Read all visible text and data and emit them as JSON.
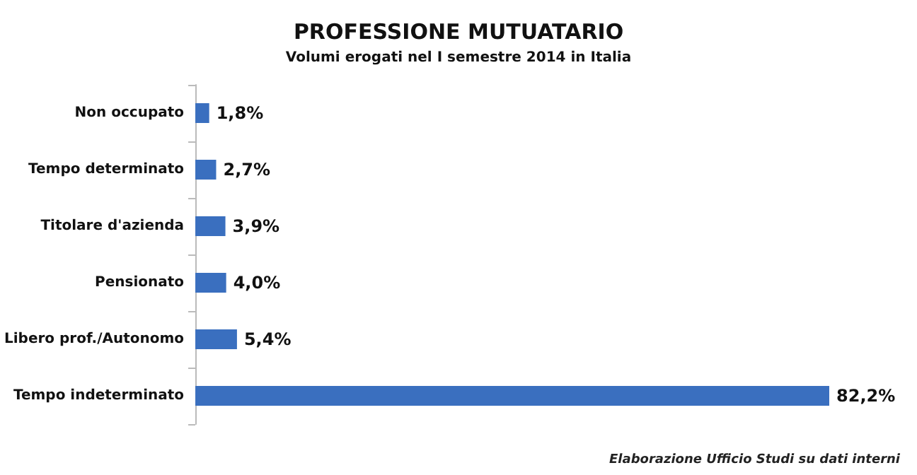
{
  "chart_data": {
    "type": "bar",
    "orientation": "horizontal",
    "title": "PROFESSIONE MUTUATARIO",
    "subtitle": "Volumi erogati nel I semestre 2014 in Italia",
    "categories": [
      "Non occupato",
      "Tempo determinato",
      "Titolare d'azienda",
      "Pensionato",
      "Libero prof./Autonomo",
      "Tempo indeterminato"
    ],
    "values": [
      1.8,
      2.7,
      3.9,
      4.0,
      5.4,
      82.2
    ],
    "value_labels": [
      "1,8%",
      "2,7%",
      "3,9%",
      "4,0%",
      "5,4%",
      "82,2%"
    ],
    "color": "#3a6fbf",
    "annotations": [
      "Elaborazione Ufficio Studi su dati interni"
    ]
  }
}
